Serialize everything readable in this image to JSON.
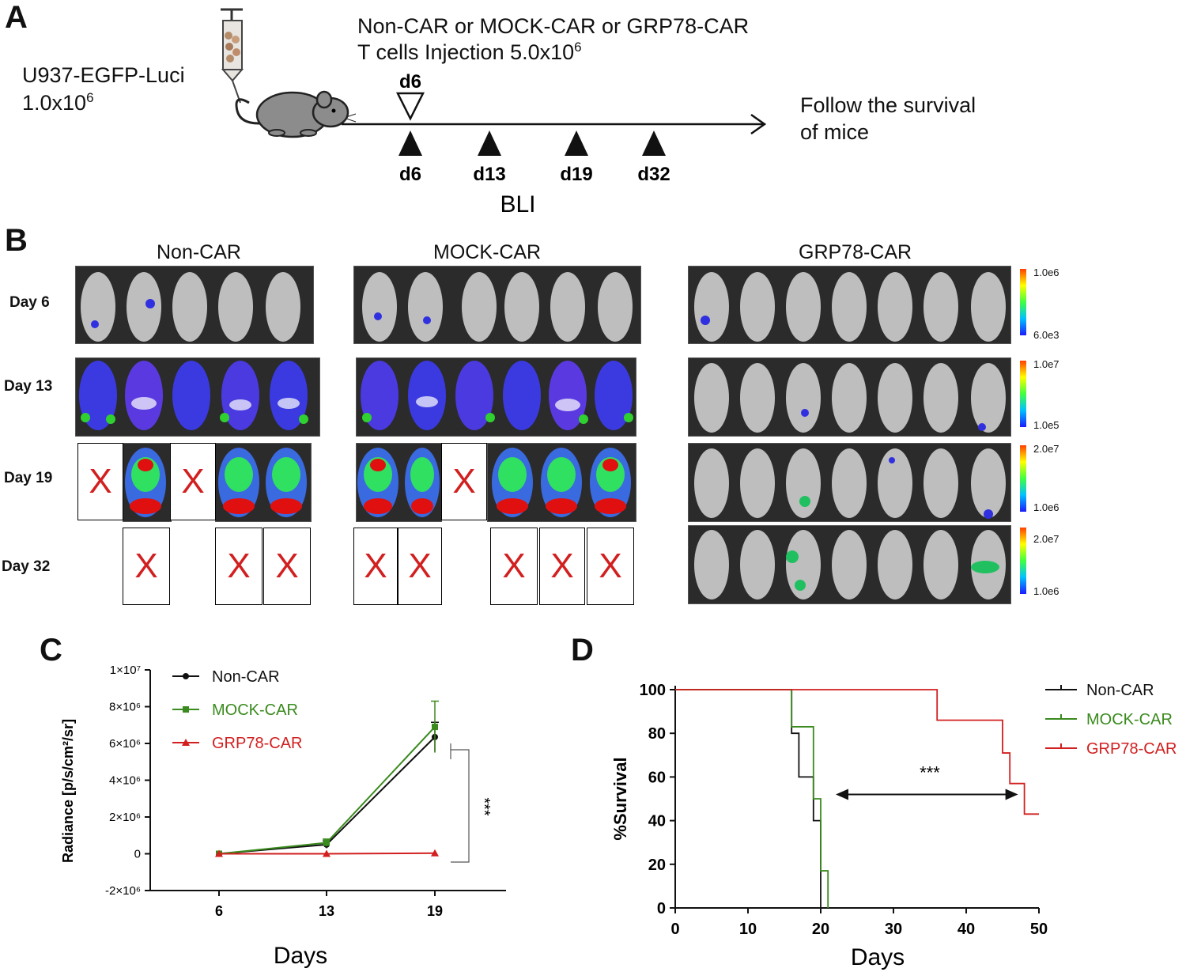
{
  "panelA": {
    "label": "A",
    "cell_line": "U937-EGFP-Luci",
    "cell_dose_base": "1.0x10",
    "cell_dose_exp": "6",
    "injection_line1": "Non-CAR or MOCK-CAR or GRP78-CAR",
    "injection_line2_base": "T cells Injection 5.0x10",
    "injection_line2_exp": "6",
    "injection_day": "d6",
    "bli_days": [
      "d6",
      "d13",
      "d19",
      "d32"
    ],
    "bli_label": "BLI",
    "follow_line1": "Follow  the survival",
    "follow_line2": "of mice"
  },
  "panelB": {
    "label": "B",
    "groups": [
      "Non-CAR",
      "MOCK-CAR",
      "GRP78-CAR"
    ],
    "days": [
      "Day 6",
      "Day 13",
      "Day 19",
      "Day 32"
    ],
    "death_mark": "X",
    "scales": [
      {
        "max": "1.0e6",
        "min": "6.0e3"
      },
      {
        "max": "1.0e7",
        "min": "1.0e5"
      },
      {
        "max": "2.0e7",
        "min": "1.0e6"
      },
      {
        "max": "2.0e7",
        "min": "1.0e6"
      }
    ]
  },
  "panelC": {
    "label": "C",
    "chart_data": {
      "type": "line",
      "title": "",
      "xlabel": "Days",
      "ylabel": "Radiance [p/s/cm²/sr]",
      "x": [
        6,
        13,
        19
      ],
      "ylim": [
        -2000000,
        10000000
      ],
      "yticks": [
        "-2×10⁶",
        "0",
        "2×10⁶",
        "4×10⁶",
        "6×10⁶",
        "8×10⁶",
        "1×10⁷"
      ],
      "xticks": [
        "6",
        "13",
        "19"
      ],
      "series": [
        {
          "name": "Non-CAR",
          "color": "#111111",
          "values": [
            0,
            500000,
            6350000
          ],
          "err": [
            0,
            200000,
            800000
          ]
        },
        {
          "name": "MOCK-CAR",
          "color": "#3a8a1e",
          "values": [
            0,
            600000,
            6900000
          ],
          "err": [
            0,
            200000,
            1400000
          ]
        },
        {
          "name": "GRP78-CAR",
          "color": "#d21f1f",
          "values": [
            0,
            0,
            30000
          ],
          "err": [
            0,
            0,
            0
          ]
        }
      ],
      "annotation": "***"
    }
  },
  "panelD": {
    "label": "D",
    "chart_data": {
      "type": "line",
      "title": "",
      "xlabel": "Days",
      "ylabel": "%Survival",
      "xlim": [
        0,
        50
      ],
      "ylim": [
        0,
        100
      ],
      "xticks": [
        "0",
        "10",
        "20",
        "30",
        "40",
        "50"
      ],
      "yticks": [
        "0",
        "20",
        "40",
        "60",
        "80",
        "100"
      ],
      "series": [
        {
          "name": "Non-CAR",
          "color": "#111111",
          "steps": [
            [
              0,
              100
            ],
            [
              16,
              100
            ],
            [
              16,
              80
            ],
            [
              17,
              80
            ],
            [
              17,
              60
            ],
            [
              19,
              60
            ],
            [
              19,
              40
            ],
            [
              20,
              40
            ],
            [
              20,
              0
            ]
          ]
        },
        {
          "name": "MOCK-CAR",
          "color": "#3a8a1e",
          "steps": [
            [
              0,
              100
            ],
            [
              16,
              100
            ],
            [
              16,
              83
            ],
            [
              19,
              83
            ],
            [
              19,
              50
            ],
            [
              20,
              50
            ],
            [
              20,
              17
            ],
            [
              21,
              17
            ],
            [
              21,
              0
            ]
          ]
        },
        {
          "name": "GRP78-CAR",
          "color": "#d21f1f",
          "steps": [
            [
              0,
              100
            ],
            [
              36,
              100
            ],
            [
              36,
              86
            ],
            [
              45,
              86
            ],
            [
              45,
              71
            ],
            [
              46,
              71
            ],
            [
              46,
              57
            ],
            [
              48,
              57
            ],
            [
              48,
              43
            ],
            [
              50,
              43
            ]
          ]
        }
      ],
      "annotation": "***"
    }
  }
}
